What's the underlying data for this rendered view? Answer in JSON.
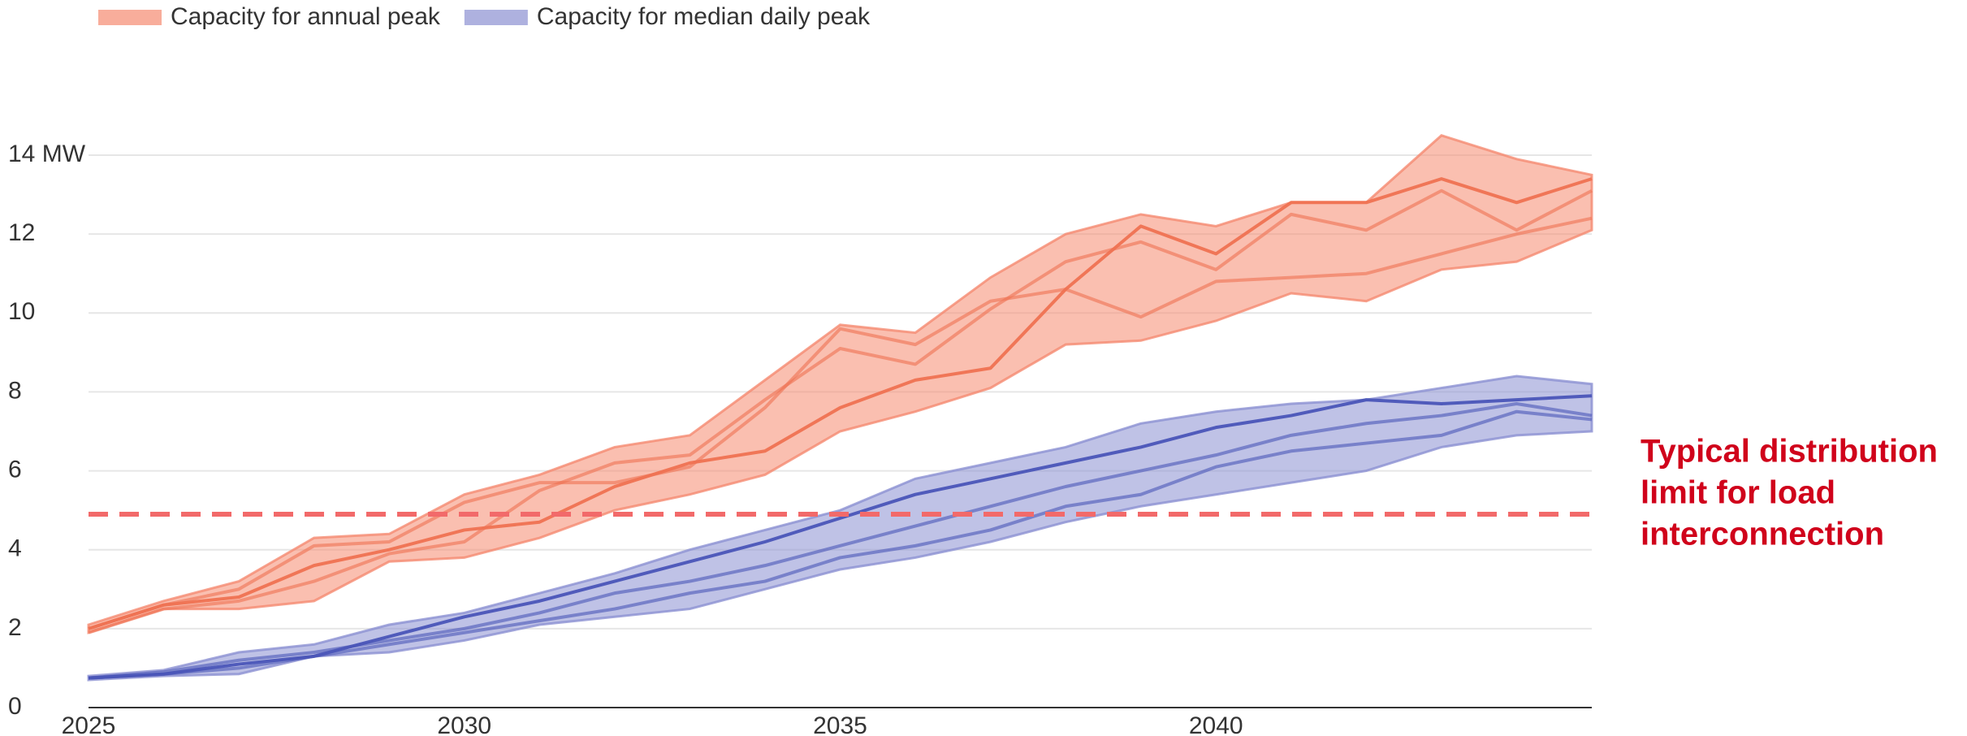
{
  "chart_data": {
    "type": "line_band",
    "x": [
      2025,
      2026,
      2027,
      2028,
      2029,
      2030,
      2031,
      2032,
      2033,
      2034,
      2035,
      2036,
      2037,
      2038,
      2039,
      2040,
      2041,
      2042,
      2043,
      2044,
      2045
    ],
    "xlim": [
      2025,
      2045
    ],
    "xticks": [
      2025,
      2030,
      2035,
      2040
    ],
    "ylim": [
      0,
      14
    ],
    "yticks": [
      0,
      2,
      4,
      6,
      8,
      10,
      12,
      {
        "value": 14,
        "label": "14 MW"
      }
    ],
    "grid": true,
    "series": [
      {
        "name": "Capacity for annual peak",
        "color": "#f58a70",
        "line_color": "#ef7252",
        "band": {
          "upper": [
            2.1,
            2.7,
            3.2,
            4.3,
            4.4,
            5.4,
            5.9,
            6.6,
            6.9,
            8.3,
            9.7,
            9.5,
            10.9,
            12.0,
            12.5,
            12.2,
            12.8,
            12.8,
            14.5,
            13.9,
            13.5
          ],
          "lower": [
            1.9,
            2.5,
            2.5,
            2.7,
            3.7,
            3.8,
            4.3,
            5.0,
            5.4,
            5.9,
            7.0,
            7.5,
            8.1,
            9.2,
            9.3,
            9.8,
            10.5,
            10.3,
            11.1,
            11.3,
            12.1
          ]
        },
        "lines": [
          [
            2.0,
            2.6,
            2.8,
            3.6,
            4.0,
            4.5,
            4.7,
            5.6,
            6.2,
            6.5,
            7.6,
            8.3,
            8.6,
            10.6,
            12.2,
            11.5,
            12.8,
            12.8,
            13.4,
            12.8,
            13.4
          ],
          [
            2.0,
            2.6,
            3.0,
            4.1,
            4.2,
            5.2,
            5.7,
            5.7,
            6.1,
            7.6,
            9.6,
            9.2,
            10.3,
            10.6,
            9.9,
            10.8,
            10.9,
            11.0,
            11.5,
            12.0,
            12.4
          ],
          [
            1.9,
            2.5,
            2.7,
            3.2,
            3.9,
            4.2,
            5.5,
            6.2,
            6.4,
            7.8,
            9.1,
            8.7,
            10.1,
            11.3,
            11.8,
            11.1,
            12.5,
            12.1,
            13.1,
            12.1,
            13.1
          ]
        ]
      },
      {
        "name": "Capacity for median daily peak",
        "color": "#8b90d2",
        "line_color": "#4a55b8",
        "band": {
          "upper": [
            0.8,
            0.95,
            1.4,
            1.6,
            2.1,
            2.4,
            2.9,
            3.4,
            4.0,
            4.5,
            5.0,
            5.8,
            6.2,
            6.6,
            7.2,
            7.5,
            7.7,
            7.8,
            8.1,
            8.4,
            8.2
          ],
          "lower": [
            0.7,
            0.8,
            0.85,
            1.3,
            1.4,
            1.7,
            2.1,
            2.3,
            2.5,
            3.0,
            3.5,
            3.8,
            4.2,
            4.7,
            5.1,
            5.4,
            5.7,
            6.0,
            6.6,
            6.9,
            7.0
          ]
        },
        "lines": [
          [
            0.75,
            0.85,
            1.1,
            1.3,
            1.8,
            2.3,
            2.7,
            3.2,
            3.7,
            4.2,
            4.8,
            5.4,
            5.8,
            6.2,
            6.6,
            7.1,
            7.4,
            7.8,
            7.7,
            7.8,
            7.9
          ],
          [
            0.75,
            0.85,
            1.0,
            1.3,
            1.6,
            1.9,
            2.2,
            2.5,
            2.9,
            3.2,
            3.8,
            4.1,
            4.5,
            5.1,
            5.4,
            6.1,
            6.5,
            6.7,
            6.9,
            7.5,
            7.3
          ],
          [
            0.75,
            0.9,
            1.2,
            1.4,
            1.7,
            2.0,
            2.4,
            2.9,
            3.2,
            3.6,
            4.1,
            4.6,
            5.1,
            5.6,
            6.0,
            6.4,
            6.9,
            7.2,
            7.4,
            7.7,
            7.4
          ]
        ]
      }
    ],
    "reference_line": {
      "value": 4.9,
      "color": "#f26a6a",
      "label_lines": [
        "Typical distribution",
        "limit for load",
        "interconnection"
      ],
      "label_color": "#d0021b"
    }
  }
}
